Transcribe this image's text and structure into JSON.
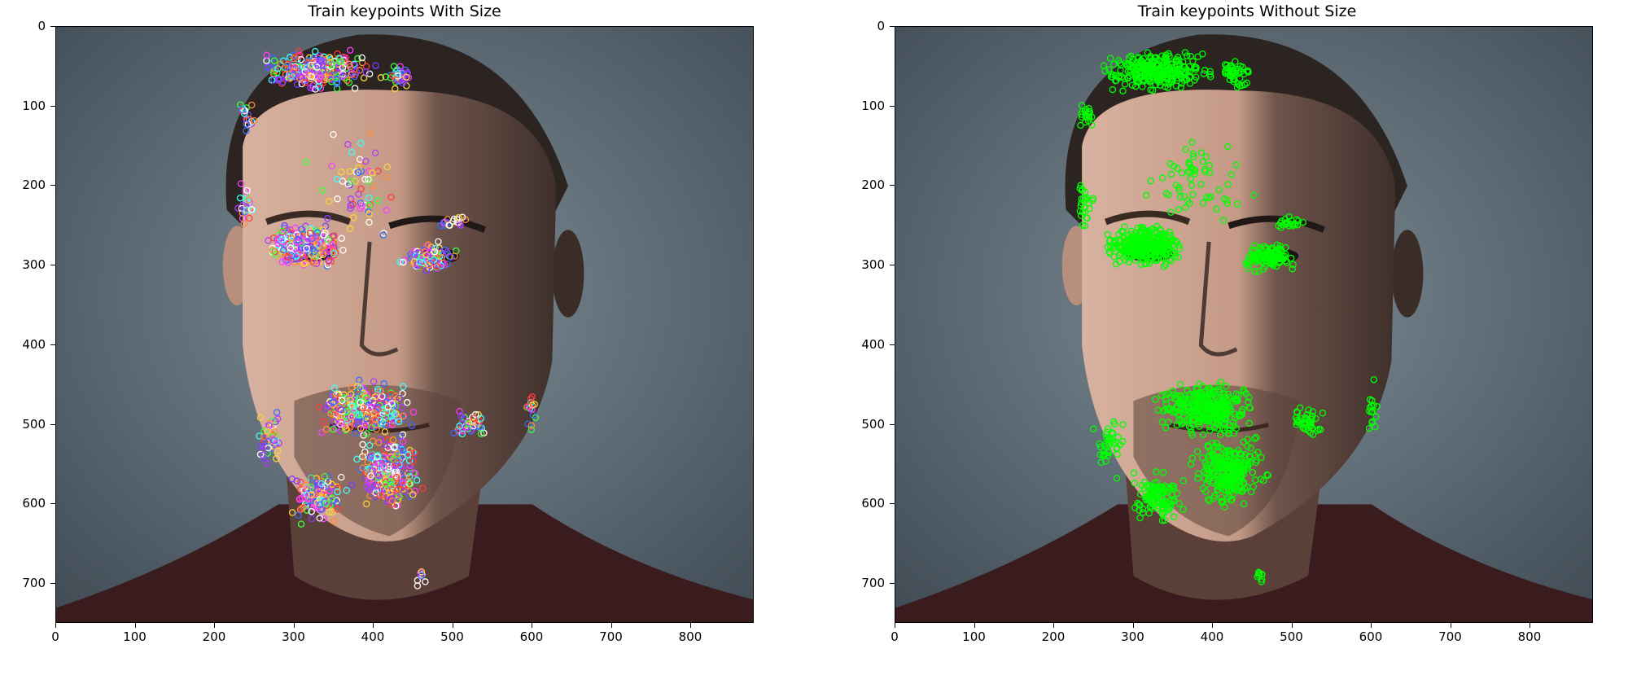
{
  "panels": [
    {
      "title": "Train keypoints With Size",
      "keypoint_style": "multicolor",
      "x_ticks": [
        "0",
        "100",
        "200",
        "300",
        "400",
        "500",
        "600",
        "700",
        "800"
      ],
      "y_ticks": [
        "0",
        "100",
        "200",
        "300",
        "400",
        "500",
        "600",
        "700"
      ],
      "x_range": [
        0,
        880
      ],
      "y_range": [
        0,
        750
      ]
    },
    {
      "title": "Train keypoints Without Size",
      "keypoint_style": "green",
      "x_ticks": [
        "0",
        "100",
        "200",
        "300",
        "400",
        "500",
        "600",
        "700",
        "800"
      ],
      "y_ticks": [
        "0",
        "100",
        "200",
        "300",
        "400",
        "500",
        "600",
        "700"
      ],
      "x_range": [
        0,
        880
      ],
      "y_range": [
        0,
        750
      ]
    }
  ],
  "colors": {
    "background_dark": "#3f4a53",
    "background_light": "#7e8d97",
    "hair": "#2b2420",
    "skin": "#c49a86",
    "shirt": "#3a1c1e",
    "keypoint_green": "#00ff00"
  }
}
